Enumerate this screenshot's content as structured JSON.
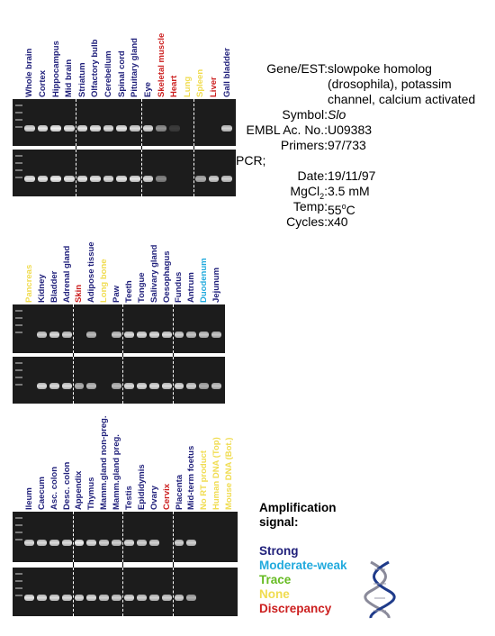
{
  "colors": {
    "strong": "#1f1f7a",
    "moderate": "#22aadd",
    "trace": "#66bb22",
    "none": "#f0dc50",
    "discrepancy": "#cc1f1f"
  },
  "panels": [
    {
      "lanes": [
        {
          "label": "Whole brain",
          "signal": "strong"
        },
        {
          "label": "Cortex",
          "signal": "strong"
        },
        {
          "label": "Hippocampus",
          "signal": "strong"
        },
        {
          "label": "Mid brain",
          "signal": "strong"
        },
        {
          "label": "Striatum",
          "signal": "strong"
        },
        {
          "label": "Olfactory bulb",
          "signal": "strong"
        },
        {
          "label": "Cerebellum",
          "signal": "strong"
        },
        {
          "label": "Spinal cord",
          "signal": "strong"
        },
        {
          "label": "Pituitary gland",
          "signal": "strong"
        },
        {
          "label": "Eye",
          "signal": "strong"
        },
        {
          "label": "Skeletal muscle",
          "signal": "discrepancy"
        },
        {
          "label": "Heart",
          "signal": "discrepancy"
        },
        {
          "label": "Lung",
          "signal": "none"
        },
        {
          "label": "Spleen",
          "signal": "none"
        },
        {
          "label": "Liver",
          "signal": "discrepancy"
        },
        {
          "label": "Gall bladder",
          "signal": "strong"
        }
      ],
      "row1": [
        0.9,
        0.95,
        1,
        0.95,
        0.95,
        0.95,
        0.9,
        0.95,
        0.9,
        0.9,
        0.55,
        0.15,
        0,
        0,
        0,
        0.85
      ],
      "row2": [
        0.95,
        0.95,
        1,
        0.95,
        0.95,
        0.95,
        0.9,
        0.95,
        0.95,
        0.9,
        0.5,
        0,
        0,
        0.7,
        0.85,
        0.85
      ],
      "dividers_after": [
        3,
        8,
        12
      ]
    },
    {
      "lanes": [
        {
          "label": "Pancreas",
          "signal": "none"
        },
        {
          "label": "Kidney",
          "signal": "strong"
        },
        {
          "label": "Bladder",
          "signal": "strong"
        },
        {
          "label": "Adrenal gland",
          "signal": "strong"
        },
        {
          "label": "Skin",
          "signal": "discrepancy"
        },
        {
          "label": "Adipose tissue",
          "signal": "strong"
        },
        {
          "label": "Long bone",
          "signal": "none"
        },
        {
          "label": "Paw",
          "signal": "strong"
        },
        {
          "label": "Teeth",
          "signal": "strong"
        },
        {
          "label": "Tongue",
          "signal": "strong"
        },
        {
          "label": "Salivary gland",
          "signal": "strong"
        },
        {
          "label": "Oesophagus",
          "signal": "strong"
        },
        {
          "label": "Fundus",
          "signal": "strong"
        },
        {
          "label": "Antrum",
          "signal": "strong"
        },
        {
          "label": "Duodenum",
          "signal": "moderate"
        },
        {
          "label": "Jejunum",
          "signal": "strong"
        }
      ],
      "row1": [
        0,
        0.85,
        0.9,
        0.85,
        0,
        0.75,
        0,
        0.8,
        0.9,
        0.9,
        0.9,
        0.9,
        0.85,
        0.8,
        0.8,
        0.8
      ],
      "row2": [
        0,
        0.9,
        0.9,
        0.9,
        0.7,
        0.75,
        0,
        0.75,
        0.9,
        0.9,
        0.9,
        0.9,
        0.9,
        0.85,
        0.7,
        0.8
      ],
      "dividers_after": [
        3,
        7,
        11
      ]
    },
    {
      "lanes": [
        {
          "label": "Ileum",
          "signal": "strong"
        },
        {
          "label": "Caecum",
          "signal": "strong"
        },
        {
          "label": "Asc. colon",
          "signal": "strong"
        },
        {
          "label": "Desc. colon",
          "signal": "strong"
        },
        {
          "label": "Appendix",
          "signal": "strong"
        },
        {
          "label": "Thymus",
          "signal": "strong"
        },
        {
          "label": "Mamm.gland non-preg.",
          "signal": "strong"
        },
        {
          "label": "Mamm.gland preg.",
          "signal": "strong"
        },
        {
          "label": "Testis",
          "signal": "strong"
        },
        {
          "label": "Epididymis",
          "signal": "strong"
        },
        {
          "label": "Ovary",
          "signal": "strong"
        },
        {
          "label": "Cervix",
          "signal": "discrepancy"
        },
        {
          "label": "Placenta",
          "signal": "strong"
        },
        {
          "label": "Mid-term foetus",
          "signal": "strong"
        },
        {
          "label": "No RT product",
          "signal": "none"
        },
        {
          "label": "Human DNA (Top)",
          "signal": "none"
        },
        {
          "label": "Mouse DNA (Bot.)",
          "signal": "none"
        }
      ],
      "row1": [
        0.9,
        0.9,
        0.9,
        0.9,
        1,
        0.9,
        0.85,
        0.85,
        0.9,
        0.85,
        0.85,
        0,
        0.85,
        0.85,
        0,
        0,
        0
      ],
      "row2": [
        0.95,
        0.9,
        0.9,
        0.9,
        0.9,
        0.9,
        0.85,
        0.85,
        0.9,
        0.85,
        0.85,
        0.85,
        0.85,
        0.7,
        0,
        0,
        0
      ],
      "dividers_after": [
        3,
        7,
        11
      ]
    }
  ],
  "info": {
    "gene_label": "Gene/EST:",
    "gene_lines": [
      "slowpoke homolog",
      "(drosophila), potassim",
      "channel, calcium activated"
    ],
    "symbol_label": "Symbol:",
    "symbol": "Slo",
    "embl_label": "EMBL Ac. No.:",
    "embl": "U09383",
    "primers_label": "Primers:",
    "primers": "97/733",
    "pcr_label": "PCR;",
    "date_label": "Date:",
    "date": "19/11/97",
    "mgcl_label_main": "MgCl",
    "mgcl_label_sub": "2",
    "mgcl_label_end": ":",
    "mgcl": "3.5 mM",
    "temp_label": "Temp:",
    "temp_value": "55",
    "temp_sup": "o",
    "temp_unit": "C",
    "cycles_label": "Cycles:",
    "cycles": "x40"
  },
  "legend": {
    "title_line1": "Amplification",
    "title_line2": "signal:",
    "strong": "Strong",
    "moderate": "Moderate-weak",
    "trace": "Trace",
    "none": "None",
    "discrepancy": "Discrepancy"
  }
}
